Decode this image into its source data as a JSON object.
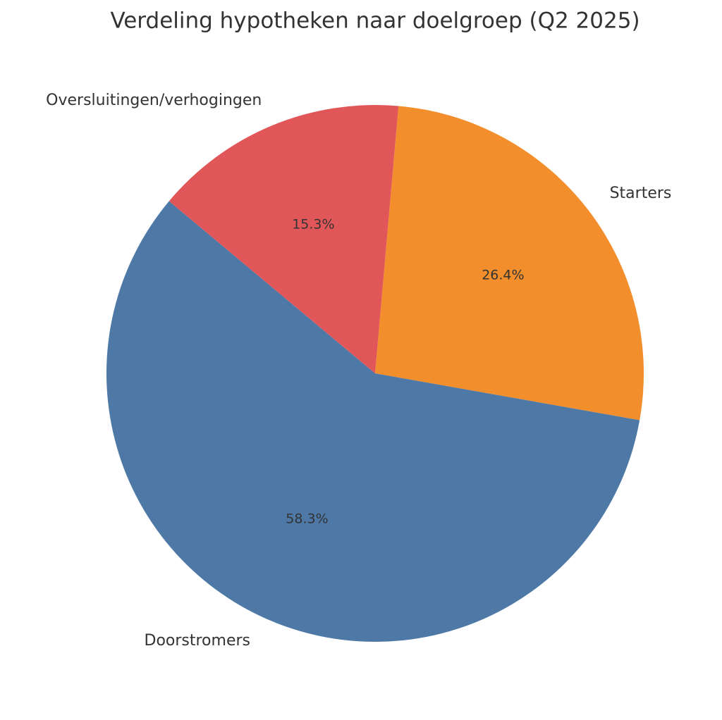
{
  "chart_data": {
    "type": "pie",
    "title": "Verdeling hypotheken naar doelgroep (Q2 2025)",
    "categories": [
      "Starters",
      "Doorstromers",
      "Oversluitingen/verhogingen"
    ],
    "values": [
      26.4,
      58.3,
      15.3
    ],
    "value_labels": [
      "26.4%",
      "58.3%",
      "15.3%"
    ],
    "colors": [
      "#f28e2b",
      "#4e79a7",
      "#e15759"
    ]
  }
}
